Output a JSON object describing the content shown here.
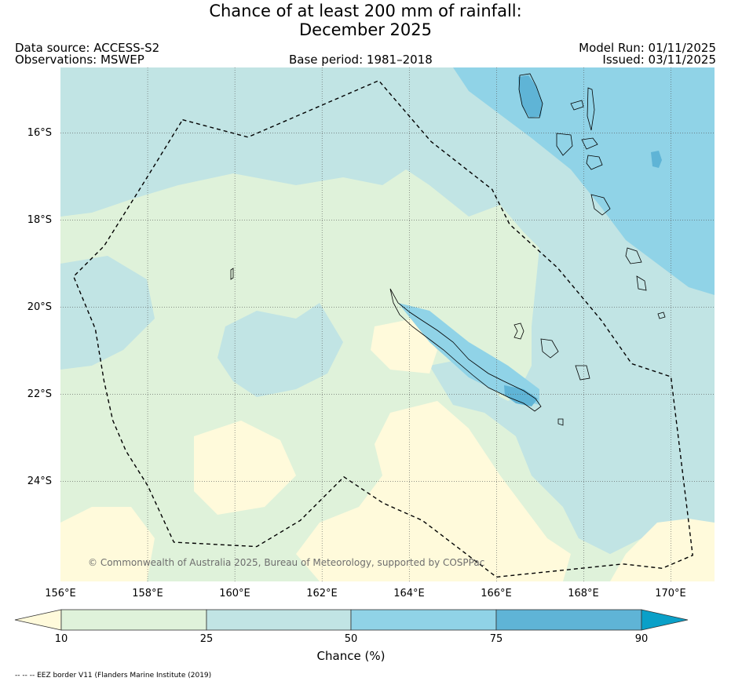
{
  "header": {
    "title_line1": "Chance of at least 200 mm of rainfall:",
    "title_line2": "December 2025",
    "data_source": "Data source: ACCESS-S2",
    "observations": "Observations: MSWEP",
    "base_period": "Base period: 1981–2018",
    "model_run": "Model Run: 01/11/2025",
    "issued": "Issued: 03/11/2025"
  },
  "map": {
    "lon_range": [
      156,
      171
    ],
    "lat_range": [
      -26.3,
      -14.5
    ],
    "lon_ticks": [
      "156°E",
      "158°E",
      "160°E",
      "162°E",
      "164°E",
      "166°E",
      "168°E",
      "170°E"
    ],
    "lat_ticks": [
      "16°S",
      "18°S",
      "20°S",
      "22°S",
      "24°S"
    ],
    "grid": true,
    "copyright": "© Commonwealth of Australia 2025, Bureau of Meteorology, supported by COSPPac",
    "eez_border": [
      [
        158.8,
        -15.7
      ],
      [
        160.3,
        -16.1
      ],
      [
        163.3,
        -14.8
      ],
      [
        164.5,
        -16.2
      ],
      [
        165.9,
        -17.3
      ],
      [
        166.3,
        -18.1
      ],
      [
        167.4,
        -19.1
      ],
      [
        168.4,
        -20.3
      ],
      [
        169.1,
        -21.3
      ],
      [
        170.0,
        -21.6
      ],
      [
        170.5,
        -25.7
      ],
      [
        169.8,
        -26.0
      ],
      [
        168.9,
        -25.9
      ],
      [
        166.0,
        -26.2
      ],
      [
        164.3,
        -24.9
      ],
      [
        163.4,
        -24.5
      ],
      [
        162.5,
        -23.9
      ],
      [
        161.5,
        -24.9
      ],
      [
        160.5,
        -25.5
      ],
      [
        158.6,
        -25.4
      ],
      [
        158.0,
        -24.1
      ],
      [
        157.5,
        -23.3
      ],
      [
        157.2,
        -22.6
      ],
      [
        157.0,
        -21.7
      ],
      [
        156.8,
        -20.5
      ],
      [
        156.3,
        -19.3
      ],
      [
        157.0,
        -18.6
      ],
      [
        157.5,
        -17.8
      ],
      [
        158.0,
        -17.0
      ]
    ]
  },
  "colorbar": {
    "title": "Chance (%)",
    "tick_labels": [
      "10",
      "25",
      "50",
      "75",
      "90"
    ],
    "colors": [
      "#fffadb",
      "#dff2da",
      "#c1e4e4",
      "#90d3e7",
      "#5fb4d6",
      "#0aa0c8"
    ]
  },
  "footnote": "-- -- -- EEZ border V11 (Flanders Marine Institute (2019)"
}
